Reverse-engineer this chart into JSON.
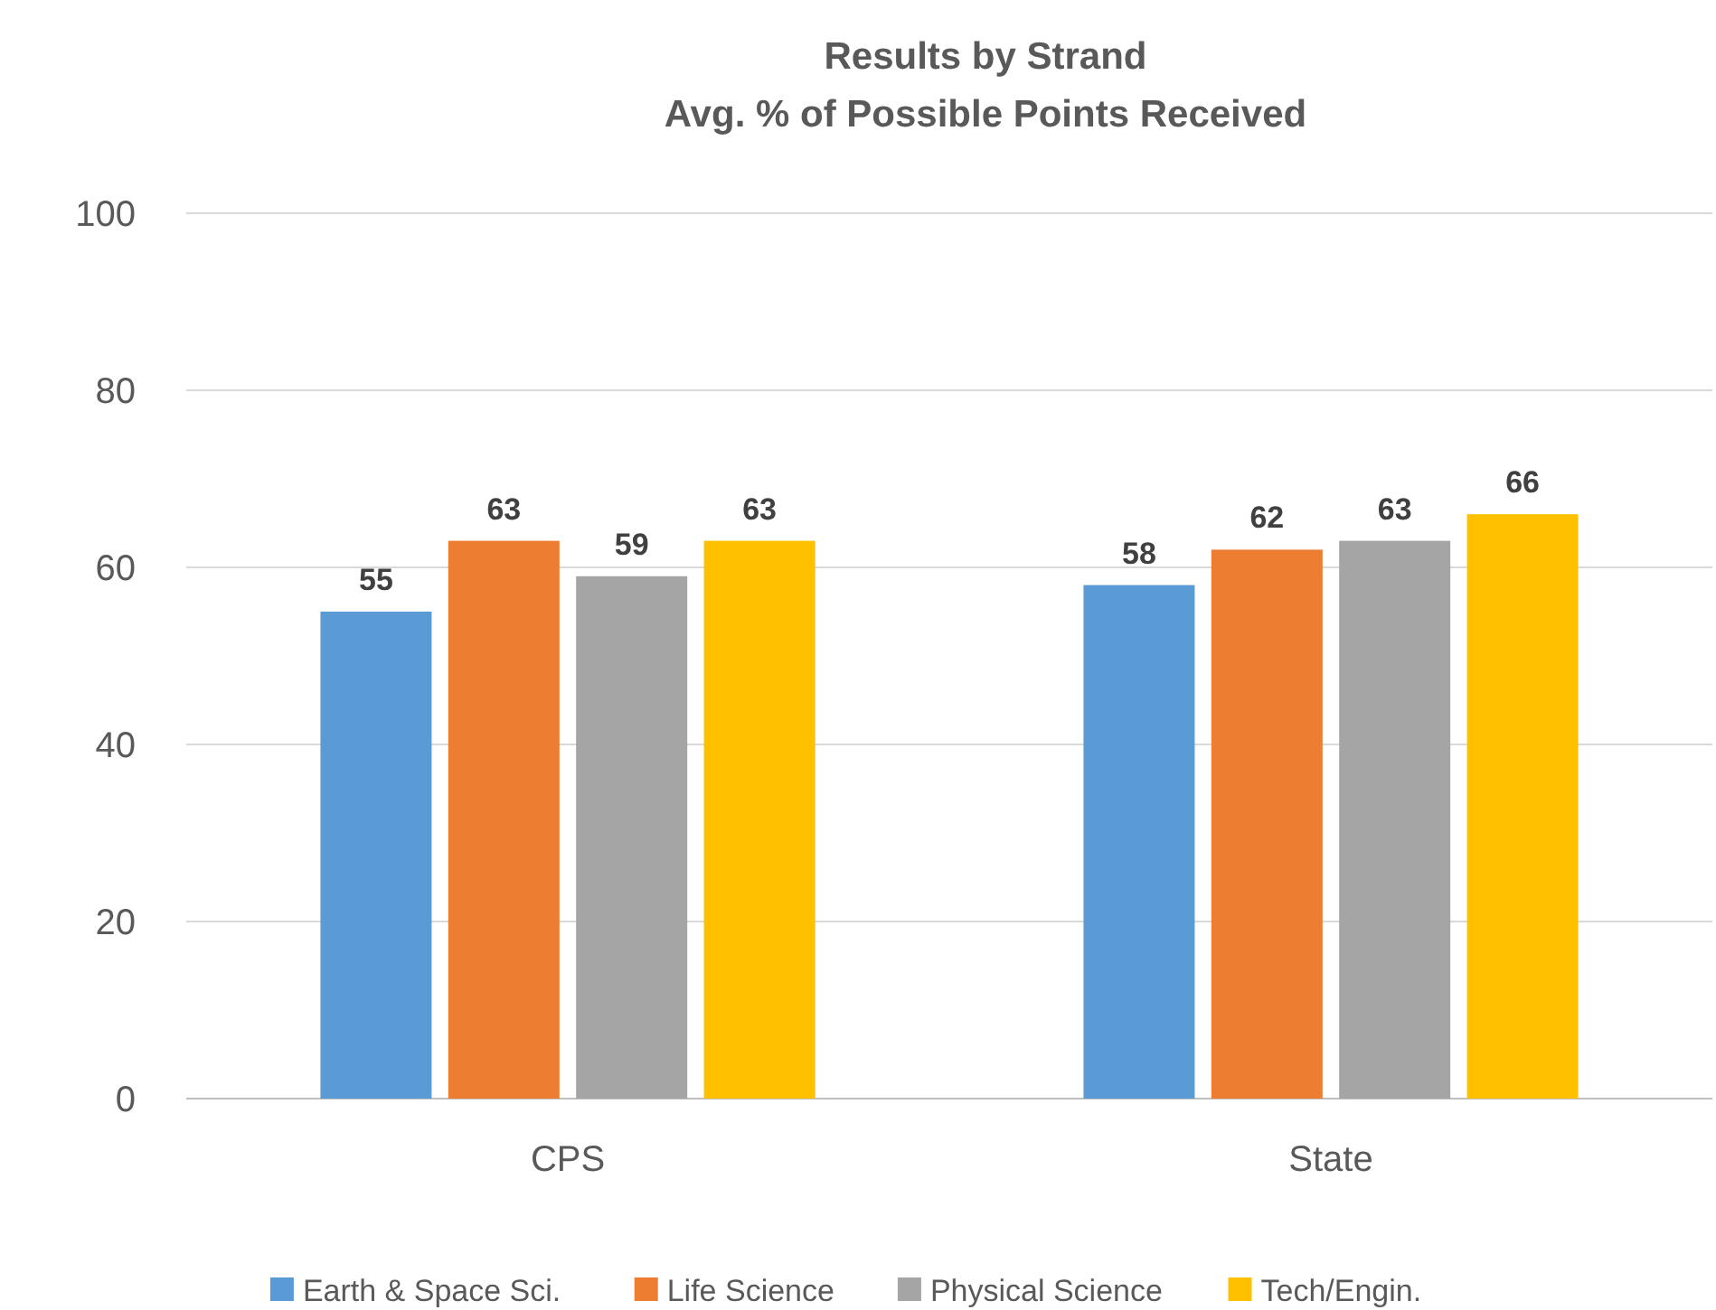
{
  "chart_data": {
    "type": "bar",
    "title": "Results by Strand\nAvg. % of Possible Points Received",
    "categories": [
      "CPS",
      "State"
    ],
    "series": [
      {
        "name": "Earth & Space Sci.",
        "color": "#5b9bd5",
        "values": [
          55,
          58
        ]
      },
      {
        "name": "Life Science",
        "color": "#ed7d31",
        "values": [
          63,
          62
        ]
      },
      {
        "name": "Physical Science",
        "color": "#a5a5a5",
        "values": [
          59,
          63
        ]
      },
      {
        "name": "Tech/Engin.",
        "color": "#ffc000",
        "values": [
          63,
          66
        ]
      }
    ],
    "ylim": [
      0,
      100
    ],
    "yticks": [
      0,
      20,
      40,
      60,
      80,
      100
    ],
    "grid": "y",
    "legend": "bottom",
    "data_labels": true
  }
}
